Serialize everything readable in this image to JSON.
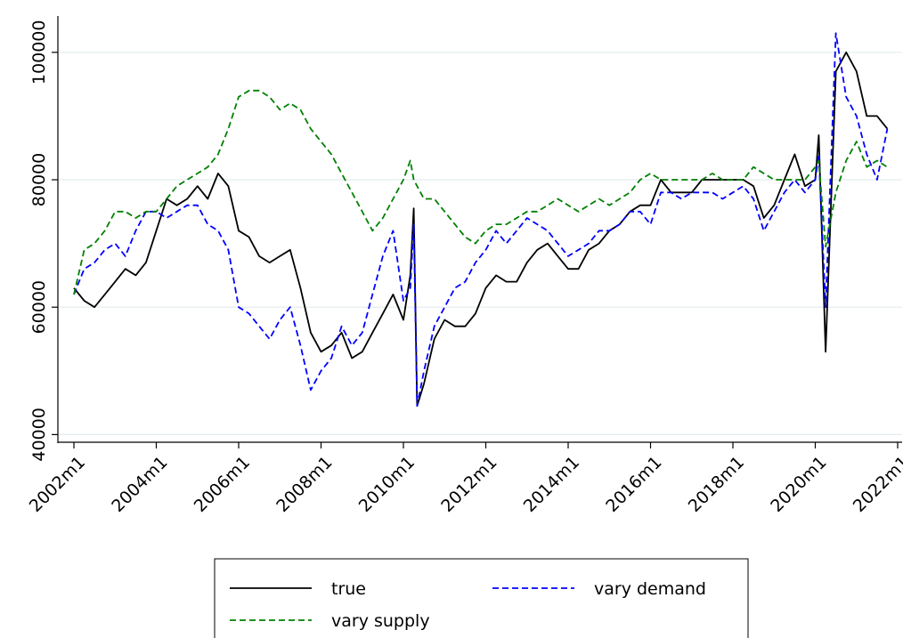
{
  "chart_data": {
    "type": "line",
    "x": [
      "2002m1",
      "2002m4",
      "2002m7",
      "2002m10",
      "2003m1",
      "2003m4",
      "2003m7",
      "2003m10",
      "2004m1",
      "2004m4",
      "2004m7",
      "2004m10",
      "2005m1",
      "2005m4",
      "2005m7",
      "2005m10",
      "2006m1",
      "2006m4",
      "2006m7",
      "2006m10",
      "2007m1",
      "2007m4",
      "2007m7",
      "2007m10",
      "2008m1",
      "2008m4",
      "2008m7",
      "2008m10",
      "2009m1",
      "2009m4",
      "2009m7",
      "2009m10",
      "2010m1",
      "2010m3",
      "2010m4",
      "2010m5",
      "2010m7",
      "2010m10",
      "2011m1",
      "2011m4",
      "2011m7",
      "2011m10",
      "2012m1",
      "2012m4",
      "2012m7",
      "2012m10",
      "2013m1",
      "2013m4",
      "2013m7",
      "2013m10",
      "2014m1",
      "2014m4",
      "2014m7",
      "2014m10",
      "2015m1",
      "2015m4",
      "2015m7",
      "2015m10",
      "2016m1",
      "2016m4",
      "2016m7",
      "2016m10",
      "2017m1",
      "2017m4",
      "2017m7",
      "2017m10",
      "2018m1",
      "2018m4",
      "2018m7",
      "2018m10",
      "2019m1",
      "2019m4",
      "2019m7",
      "2019m10",
      "2020m1",
      "2020m2",
      "2020m4",
      "2020m7",
      "2020m10",
      "2021m1",
      "2021m4",
      "2021m7",
      "2021m10"
    ],
    "series": [
      {
        "name": "true",
        "color": "#000000",
        "dash": false,
        "values": [
          63000,
          61000,
          60000,
          62000,
          64000,
          66000,
          65000,
          67000,
          72000,
          77000,
          76000,
          77000,
          79000,
          77000,
          81000,
          79000,
          72000,
          71000,
          68000,
          67000,
          68000,
          69000,
          63000,
          56000,
          53000,
          54000,
          56000,
          52000,
          53000,
          56000,
          59000,
          62000,
          58000,
          65000,
          75500,
          44500,
          48000,
          55000,
          58000,
          57000,
          57000,
          59000,
          63000,
          65000,
          64000,
          64000,
          67000,
          69000,
          70000,
          68000,
          66000,
          66000,
          69000,
          70000,
          72000,
          73000,
          75000,
          76000,
          76000,
          80000,
          78000,
          78000,
          78000,
          80000,
          80000,
          80000,
          80000,
          80000,
          79000,
          74000,
          76000,
          80000,
          84000,
          79000,
          80000,
          87000,
          53000,
          97000,
          100000,
          97000,
          90000,
          90000,
          88000
        ]
      },
      {
        "name": "vary demand",
        "color": "#0000ff",
        "dash": true,
        "values": [
          62000,
          66000,
          67000,
          69000,
          70000,
          68000,
          72000,
          75000,
          75000,
          74000,
          75000,
          76000,
          76000,
          73000,
          72000,
          69000,
          60000,
          59000,
          57000,
          55000,
          58000,
          60000,
          54000,
          47000,
          50000,
          52000,
          57000,
          54000,
          56000,
          62000,
          68000,
          72000,
          61000,
          63000,
          73000,
          44500,
          50000,
          57000,
          60000,
          63000,
          64000,
          67000,
          69000,
          72000,
          70000,
          72000,
          74000,
          73000,
          72000,
          70000,
          68000,
          69000,
          70000,
          72000,
          72000,
          73000,
          75000,
          75000,
          73000,
          78000,
          78000,
          77000,
          78000,
          78000,
          78000,
          77000,
          78000,
          79000,
          77000,
          72000,
          75000,
          78000,
          80000,
          78000,
          80000,
          84000,
          60000,
          103000,
          93000,
          90000,
          84000,
          80000,
          88000
        ]
      },
      {
        "name": "vary supply",
        "color": "#008000",
        "dash": true,
        "values": [
          62000,
          69000,
          70000,
          72000,
          75000,
          75000,
          74000,
          75000,
          75000,
          77000,
          79000,
          80000,
          81000,
          82000,
          84000,
          88000,
          93000,
          94000,
          94000,
          93000,
          91000,
          92000,
          91000,
          88000,
          86000,
          84000,
          81000,
          78000,
          75000,
          72000,
          74000,
          77000,
          80000,
          83000,
          80000,
          79000,
          77000,
          77000,
          75000,
          73000,
          71000,
          70000,
          72000,
          73000,
          73000,
          74000,
          75000,
          75000,
          76000,
          77000,
          76000,
          75000,
          76000,
          77000,
          76000,
          77000,
          78000,
          80000,
          81000,
          80000,
          80000,
          80000,
          80000,
          80000,
          81000,
          80000,
          80000,
          80000,
          82000,
          81000,
          80000,
          80000,
          80000,
          80000,
          82000,
          83000,
          69500,
          78000,
          83000,
          86000,
          82000,
          83000,
          82000
        ]
      }
    ],
    "xlim": [
      "2002m1",
      "2022m1"
    ],
    "xticks": [
      "2002m1",
      "2004m1",
      "2006m1",
      "2008m1",
      "2010m1",
      "2012m1",
      "2014m1",
      "2016m1",
      "2018m1",
      "2020m1",
      "2022m1"
    ],
    "ylim": [
      38800,
      105700
    ],
    "yticks": [
      40000,
      60000,
      80000,
      100000
    ],
    "grid": true
  }
}
